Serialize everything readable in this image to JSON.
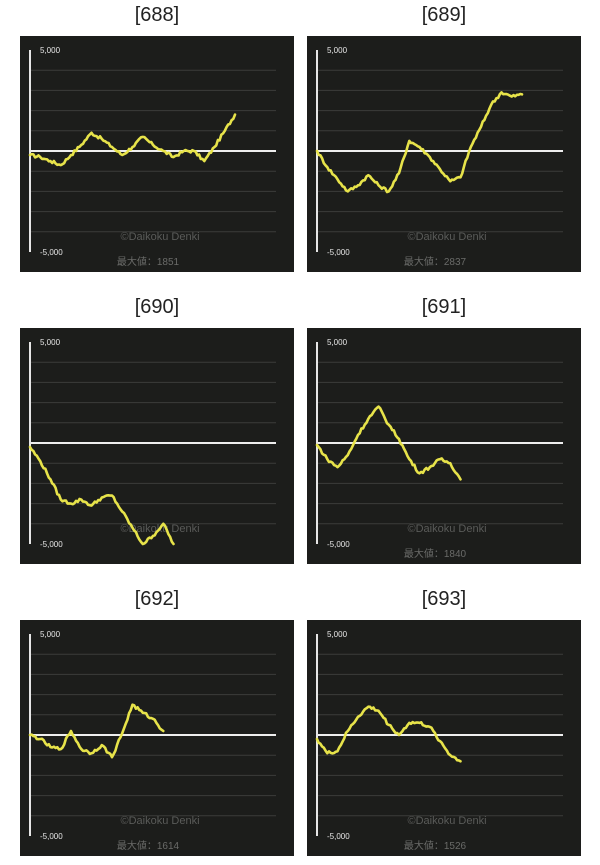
{
  "charts": [
    {
      "title": "[688]",
      "max_label": "最大値：1851",
      "watermark": "©Daikoku Denki",
      "chart_data": {
        "type": "line",
        "ytick_top": "5,000",
        "ytick_bottom": "-5,000",
        "ylim": [
          -5000,
          5000
        ],
        "x": [
          0,
          500,
          1000,
          1500,
          2000,
          2500,
          3000,
          3500,
          4000,
          4500,
          5000,
          5500,
          6000,
          6500,
          7000,
          7500,
          8000,
          8500,
          9000,
          9500,
          10000
        ],
        "values": [
          -200,
          -300,
          -500,
          -700,
          -200,
          300,
          900,
          600,
          200,
          -200,
          200,
          700,
          300,
          0,
          -300,
          0,
          0,
          -500,
          200,
          1000,
          1800
        ],
        "series_color": "#e7e34a",
        "grid": true
      }
    },
    {
      "title": "[689]",
      "max_label": "最大値：2837",
      "watermark": "©Daikoku Denki",
      "chart_data": {
        "type": "line",
        "ytick_top": "5,000",
        "ytick_bottom": "-5,000",
        "ylim": [
          -5000,
          5000
        ],
        "x": [
          0,
          500,
          1000,
          1500,
          2000,
          2500,
          3000,
          3500,
          4000,
          4500,
          5000,
          5500,
          6000,
          6500,
          7000,
          7500,
          8000,
          8500,
          9000,
          9500,
          10000
        ],
        "values": [
          0,
          -800,
          -1400,
          -2000,
          -1700,
          -1200,
          -1700,
          -2000,
          -1100,
          500,
          200,
          -300,
          -900,
          -1500,
          -1300,
          200,
          1200,
          2300,
          2900,
          2700,
          2800
        ],
        "series_color": "#e7e34a",
        "grid": true
      }
    },
    {
      "title": "[690]",
      "max_label": "",
      "watermark": "©Daikoku Denki",
      "chart_data": {
        "type": "line",
        "ytick_top": "5,000",
        "ytick_bottom": "-5,000",
        "ylim": [
          -5000,
          5000
        ],
        "x": [
          0,
          500,
          1000,
          1500,
          2000,
          2500,
          3000,
          3500,
          4000,
          4500,
          5000,
          5500,
          6000,
          6500,
          7000
        ],
        "values": [
          -200,
          -900,
          -1800,
          -2800,
          -3000,
          -2800,
          -3100,
          -2700,
          -2600,
          -3400,
          -4200,
          -5000,
          -4600,
          -4000,
          -5000
        ],
        "series_color": "#e7e34a",
        "grid": true
      }
    },
    {
      "title": "[691]",
      "max_label": "最大値：1840",
      "watermark": "©Daikoku Denki",
      "chart_data": {
        "type": "line",
        "ytick_top": "5,000",
        "ytick_bottom": "-5,000",
        "ylim": [
          -5000,
          5000
        ],
        "x": [
          0,
          500,
          1000,
          1500,
          2000,
          2500,
          3000,
          3500,
          4000,
          4500,
          5000,
          5500,
          6000,
          6500,
          7000
        ],
        "values": [
          -100,
          -800,
          -1200,
          -600,
          400,
          1200,
          1800,
          900,
          200,
          -800,
          -1500,
          -1200,
          -800,
          -1000,
          -1800
        ],
        "series_color": "#e7e34a",
        "grid": true
      }
    },
    {
      "title": "[692]",
      "max_label": "最大値：1614",
      "watermark": "©Daikoku Denki",
      "chart_data": {
        "type": "line",
        "ytick_top": "5,000",
        "ytick_bottom": "-5,000",
        "ylim": [
          -5000,
          5000
        ],
        "x": [
          0,
          500,
          1000,
          1500,
          2000,
          2500,
          3000,
          3500,
          4000,
          4500,
          5000,
          5500,
          6000,
          6500
        ],
        "values": [
          0,
          -200,
          -600,
          -700,
          200,
          -700,
          -900,
          -500,
          -1100,
          100,
          1500,
          1100,
          800,
          200
        ],
        "series_color": "#e7e34a",
        "grid": true
      }
    },
    {
      "title": "[693]",
      "max_label": "最大値：1526",
      "watermark": "©Daikoku Denki",
      "chart_data": {
        "type": "line",
        "ytick_top": "5,000",
        "ytick_bottom": "-5,000",
        "ylim": [
          -5000,
          5000
        ],
        "x": [
          0,
          500,
          1000,
          1500,
          2000,
          2500,
          3000,
          3500,
          4000,
          4500,
          5000,
          5500,
          6000,
          6500,
          7000
        ],
        "values": [
          -200,
          -900,
          -800,
          200,
          900,
          1400,
          1200,
          500,
          0,
          600,
          600,
          400,
          -300,
          -1000,
          -1300
        ],
        "series_color": "#e7e34a",
        "grid": true
      }
    }
  ],
  "colors": {
    "panel_bg": "#1c1d1b",
    "gridline": "#3b3c3a",
    "zero_line": "#eeeeee",
    "axis_line": "#e6e6e6",
    "tick_text": "#e6e6e6",
    "watermark": "#5a5b59",
    "max_text": "#6a6b69",
    "series": "#e7e34a"
  }
}
